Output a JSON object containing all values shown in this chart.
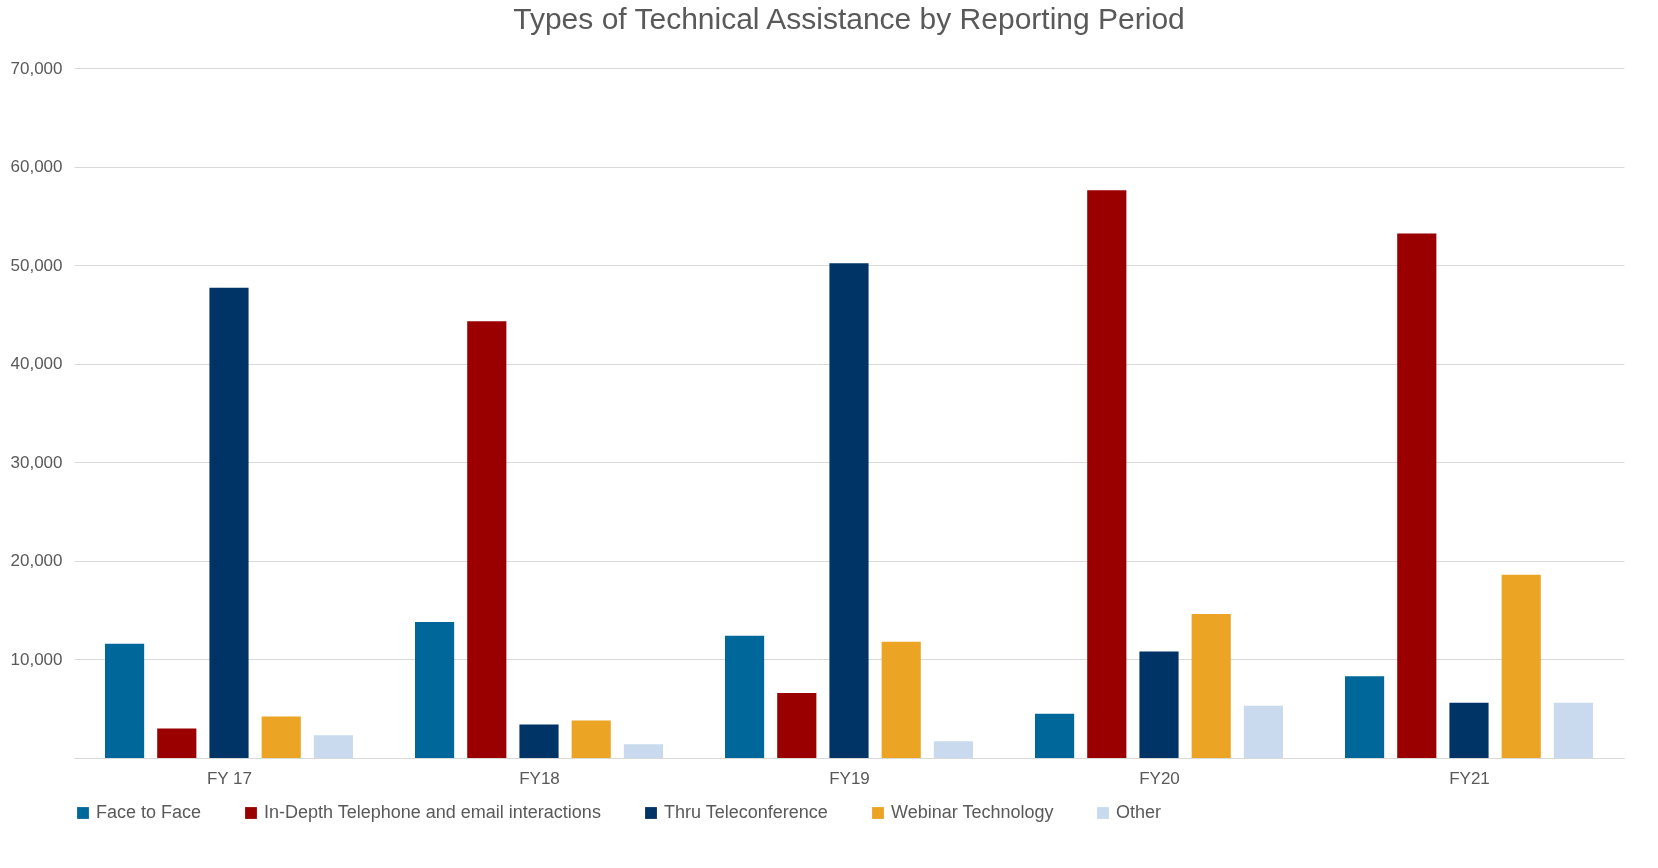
{
  "chart_data": {
    "type": "bar",
    "title": "Types of Technical Assistance by Reporting Period",
    "categories": [
      "FY 17",
      "FY18",
      "FY19",
      "FY20",
      "FY21"
    ],
    "series": [
      {
        "name": "Face to Face",
        "color": "#00679b",
        "values": [
          11600,
          13800,
          12400,
          4500,
          8300
        ]
      },
      {
        "name": "In-Depth Telephone and email interactions",
        "color": "#9b0000",
        "values": [
          3000,
          44300,
          6600,
          57600,
          53200
        ]
      },
      {
        "name": "Thru Teleconference",
        "color": "#003366",
        "values": [
          47700,
          3400,
          50200,
          10800,
          5600
        ]
      },
      {
        "name": "Webinar Technology",
        "color": "#eba423",
        "values": [
          4200,
          3800,
          11800,
          14600,
          18600
        ]
      },
      {
        "name": "Other",
        "color": "#c9daee",
        "values": [
          2300,
          1400,
          1700,
          5300,
          5600
        ]
      }
    ],
    "ylim": [
      0,
      70000
    ],
    "yticks": [
      {
        "value": 0,
        "label": null
      },
      {
        "value": 10000,
        "label": "10,000"
      },
      {
        "value": 20000,
        "label": "20,000"
      },
      {
        "value": 30000,
        "label": "30,000"
      },
      {
        "value": 40000,
        "label": "40,000"
      },
      {
        "value": 50000,
        "label": "50,000"
      },
      {
        "value": 60000,
        "label": "60,000"
      },
      {
        "value": 70000,
        "label": "70,000"
      }
    ],
    "grid": "y",
    "legend": "bottom"
  }
}
